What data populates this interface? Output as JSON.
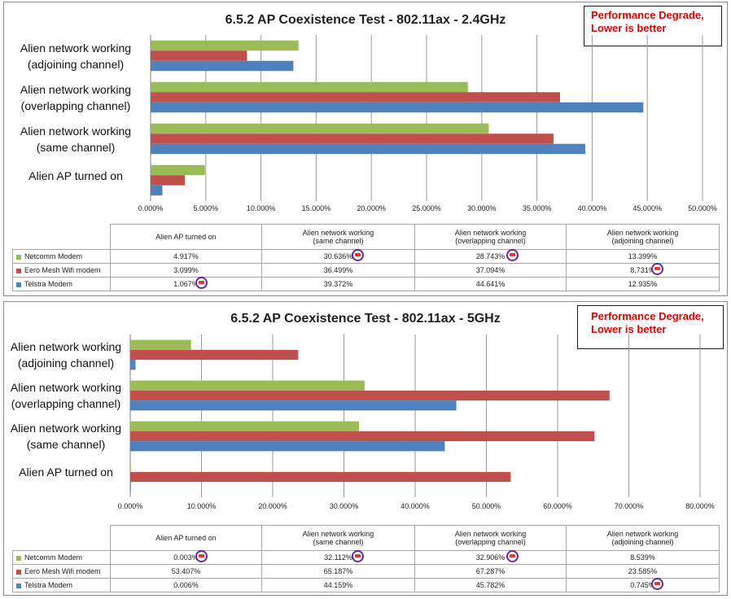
{
  "colors": {
    "Netcomm Modem": "#9bbb59",
    "Eero Mesh Wifi modem": "#c0504d",
    "Telstra Modem": "#4f81bd"
  },
  "icons": {
    "winner_badge": "award-badge-icon"
  },
  "charts": [
    {
      "title": "6.5.2 AP Coexistence Test - 802.11ax - 2.4GHz",
      "note_lines": [
        "Performance Degrade,",
        "Lower is better"
      ],
      "chart_data": {
        "type": "bar",
        "orientation": "horizontal",
        "categories": [
          "Alien AP turned on",
          "Alien network working (same channel)",
          "Alien network working (overlapping channel)",
          "Alien network working (adjoining channel)"
        ],
        "table_headers": [
          [
            "Alien AP turned on"
          ],
          [
            "Alien network working",
            "(same channel)"
          ],
          [
            "Alien network working",
            "(overlapping channel)"
          ],
          [
            "Alien network working",
            "(adjoining channel)"
          ]
        ],
        "series": [
          {
            "name": "Netcomm Modem",
            "values": [
              4.917,
              30.636,
              28.743,
              13.399
            ],
            "labels": [
              "4.917%",
              "30.636%",
              "28.743%",
              "13.399%"
            ]
          },
          {
            "name": "Eero Mesh Wifi modem",
            "values": [
              3.099,
              36.499,
              37.094,
              8.731
            ],
            "labels": [
              "3.099%",
              "36.499%",
              "37.094%",
              "8.731%"
            ]
          },
          {
            "name": "Telstra Modem",
            "values": [
              1.067,
              39.372,
              44.641,
              12.935
            ],
            "labels": [
              "1.067%",
              "39.372%",
              "44.641%",
              "12.935%"
            ]
          }
        ],
        "xlim": [
          0,
          50
        ],
        "ticks": [
          "0.000%",
          "5.000%",
          "10.000%",
          "15.000%",
          "20.000%",
          "25.000%",
          "30.000%",
          "35.000%",
          "40.000%",
          "45.000%",
          "50.000%"
        ],
        "grid": true,
        "winner_badges": [
          [
            2,
            0
          ],
          [
            0,
            1
          ],
          [
            0,
            2
          ],
          [
            1,
            3
          ]
        ]
      }
    },
    {
      "title": "6.5.2 AP Coexistence Test - 802.11ax - 5GHz",
      "note_lines": [
        "Performance Degrade,",
        "Lower is better"
      ],
      "chart_data": {
        "type": "bar",
        "orientation": "horizontal",
        "categories": [
          "Alien AP turned on",
          "Alien network working (same channel)",
          "Alien network working (overlapping channel)",
          "Alien network working (adjoining channel)"
        ],
        "table_headers": [
          [
            "Alien AP turned on"
          ],
          [
            "Alien network working",
            "(same channel)"
          ],
          [
            "Alien network working",
            "(overlapping channel)"
          ],
          [
            "Alien network working",
            "(adjoining channel)"
          ]
        ],
        "series": [
          {
            "name": "Netcomm Modem",
            "values": [
              0.003,
              32.112,
              32.906,
              8.539
            ],
            "labels": [
              "0.003%",
              "32.112%",
              "32.906%",
              "8.539%"
            ]
          },
          {
            "name": "Eero Mesh Wifi modem",
            "values": [
              53.407,
              65.187,
              67.287,
              23.585
            ],
            "labels": [
              "53.407%",
              "65.187%",
              "67.287%",
              "23.585%"
            ]
          },
          {
            "name": "Telstra Modem",
            "values": [
              0.006,
              44.159,
              45.782,
              0.745
            ],
            "labels": [
              "0.006%",
              "44.159%",
              "45.782%",
              "0.745%"
            ]
          }
        ],
        "xlim": [
          0,
          80
        ],
        "ticks": [
          "0.000%",
          "10.000%",
          "20.000%",
          "30.000%",
          "40.000%",
          "50.000%",
          "60.000%",
          "70.000%",
          "80.000%"
        ],
        "grid": true,
        "winner_badges": [
          [
            0,
            0
          ],
          [
            0,
            1
          ],
          [
            0,
            2
          ],
          [
            2,
            3
          ]
        ]
      }
    }
  ]
}
